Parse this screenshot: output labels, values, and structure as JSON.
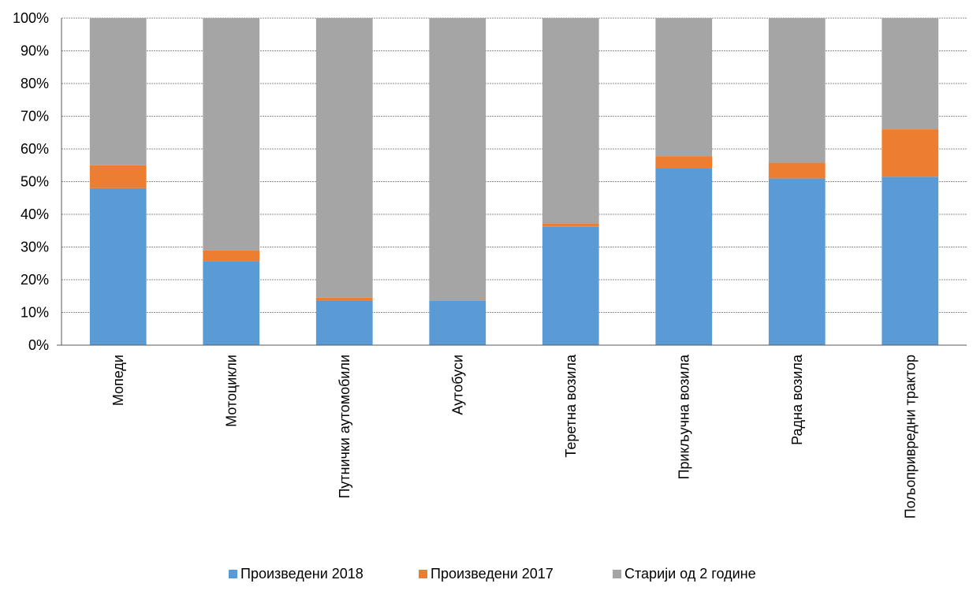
{
  "chart_data": {
    "type": "bar",
    "stacked": true,
    "title": "",
    "xlabel": "",
    "ylabel": "",
    "ylim": [
      0,
      100
    ],
    "y_ticks": [
      "0%",
      "10%",
      "20%",
      "30%",
      "40%",
      "50%",
      "60%",
      "70%",
      "80%",
      "90%",
      "100%"
    ],
    "grid": "horizontal",
    "legend_position": "bottom",
    "categories": [
      "Мопеди",
      "Мотоцикли",
      "Путнички аутомобили",
      "Аутобуси",
      "Теретна возила",
      "Прикључна возила",
      "Радна возила",
      "Пољопривредни трактор"
    ],
    "series": [
      {
        "name": "Произведени 2018",
        "color": "#5B9BD5",
        "values": [
          48,
          25.7,
          13.7,
          13.5,
          36.2,
          54.2,
          51,
          51.5
        ]
      },
      {
        "name": "Произведени 2017",
        "color": "#ED7D31",
        "values": [
          7,
          3.3,
          0.8,
          0.1,
          1,
          3.6,
          4.8,
          14.5
        ]
      },
      {
        "name": "Старији од 2 године",
        "color": "#A5A5A5",
        "values": [
          45,
          71,
          85.5,
          86.4,
          62.8,
          42.2,
          44.2,
          34
        ]
      }
    ]
  }
}
